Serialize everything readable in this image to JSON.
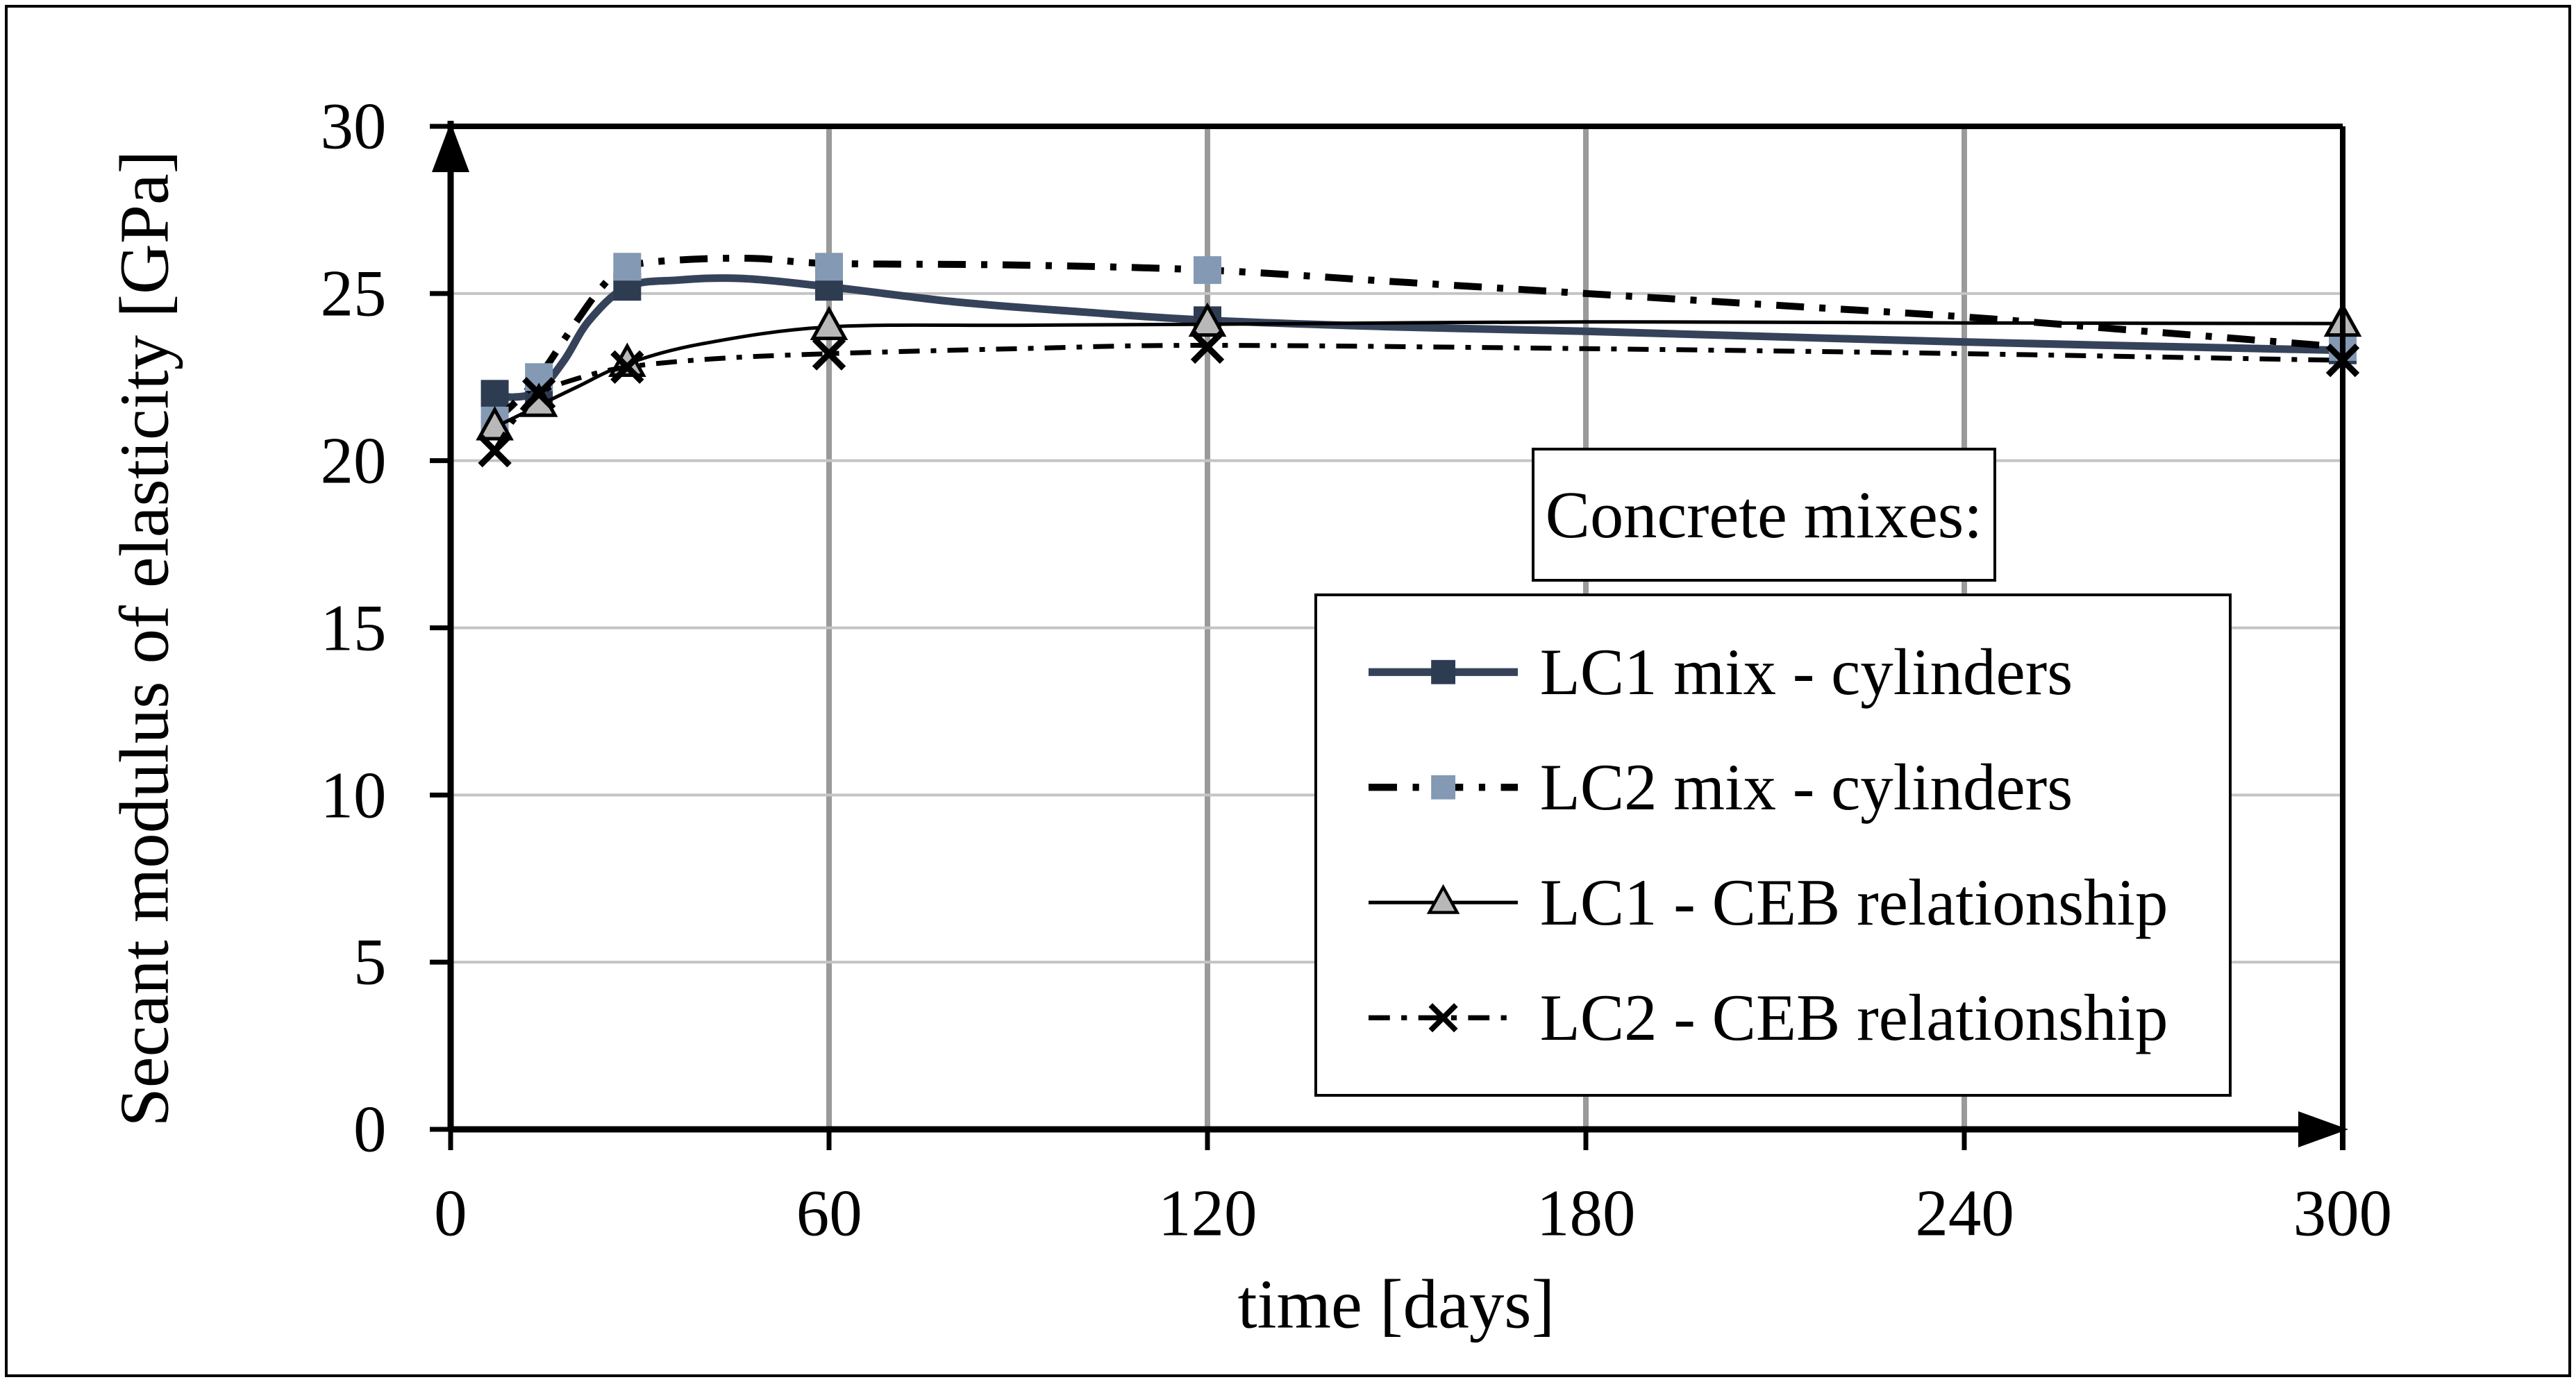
{
  "figure": {
    "background": "#ffffff",
    "frame_color": "#000000",
    "text_color": "#000000"
  },
  "chart_data": {
    "type": "line",
    "title": "",
    "xlabel": "time [days]",
    "ylabel": "Secant modulus of elasticity [GPa]",
    "xlim": [
      0,
      300
    ],
    "ylim": [
      0,
      30
    ],
    "x_ticks": [
      0,
      60,
      120,
      180,
      240,
      300
    ],
    "x_tick_labels": [
      "0",
      "60",
      "120",
      "180",
      "240",
      "300"
    ],
    "y_ticks": [
      0,
      5,
      10,
      15,
      20,
      25,
      30
    ],
    "y_tick_labels_top_down": [
      "30",
      "25",
      "20",
      "15",
      "10",
      "5",
      "0"
    ],
    "grid": {
      "show": true,
      "v_color": "#9a9a9a",
      "h_color": "#c4c4c4",
      "width": 4
    },
    "axis_color": "#000000",
    "axis_arrows": true,
    "legend": {
      "title": "Concrete mixes:",
      "position": "inside-right, boxed"
    },
    "series": [
      {
        "name": "LC1 mix - cylinders",
        "line_style": "solid",
        "line_width": 11,
        "color": "#35435a",
        "marker": "square",
        "marker_color": "#2e3c52",
        "marker_size": 40,
        "x": [
          7,
          14,
          28,
          60,
          120,
          300
        ],
        "values": [
          22.0,
          22.1,
          25.2,
          25.2,
          24.2,
          23.3
        ],
        "curve": [
          [
            7,
            22.0
          ],
          [
            10,
            21.9
          ],
          [
            14,
            22.1
          ],
          [
            18,
            23.0
          ],
          [
            22,
            24.2
          ],
          [
            28,
            25.2
          ],
          [
            36,
            25.4
          ],
          [
            46,
            25.45
          ],
          [
            60,
            25.2
          ],
          [
            80,
            24.75
          ],
          [
            100,
            24.45
          ],
          [
            120,
            24.2
          ],
          [
            150,
            24.0
          ],
          [
            180,
            23.87
          ],
          [
            240,
            23.55
          ],
          [
            300,
            23.3
          ]
        ]
      },
      {
        "name": "LC2 mix - cylinders",
        "line_style": "dash-dot",
        "line_width": 10,
        "color": "#000000",
        "dash": [
          40,
          22,
          9,
          22
        ],
        "marker": "square",
        "marker_color": "#8399b4",
        "marker_size": 40,
        "x": [
          7,
          14,
          28,
          60,
          120,
          300
        ],
        "values": [
          21.2,
          22.5,
          25.8,
          25.8,
          25.7,
          23.4
        ],
        "curve": [
          [
            7,
            21.2
          ],
          [
            10,
            21.7
          ],
          [
            14,
            22.5
          ],
          [
            19,
            23.9
          ],
          [
            24,
            25.2
          ],
          [
            28,
            25.8
          ],
          [
            36,
            26.0
          ],
          [
            48,
            26.05
          ],
          [
            60,
            25.9
          ],
          [
            90,
            25.85
          ],
          [
            120,
            25.7
          ],
          [
            150,
            25.35
          ],
          [
            180,
            25.0
          ],
          [
            210,
            24.65
          ],
          [
            240,
            24.3
          ],
          [
            270,
            23.85
          ],
          [
            300,
            23.4
          ]
        ]
      },
      {
        "name": "LC1 - CEB relationship",
        "line_style": "solid",
        "line_width": 5,
        "color": "#000000",
        "marker": "triangle",
        "marker_fill": "#b8b8b8",
        "marker_edge": "#000000",
        "marker_size": 44,
        "x": [
          7,
          14,
          28,
          60,
          120,
          300
        ],
        "values": [
          21.0,
          21.7,
          22.9,
          24.0,
          24.1,
          24.1
        ],
        "curve": [
          [
            7,
            21.0
          ],
          [
            14,
            21.65
          ],
          [
            20,
            22.2
          ],
          [
            28,
            22.9
          ],
          [
            40,
            23.5
          ],
          [
            60,
            24.0
          ],
          [
            90,
            24.05
          ],
          [
            120,
            24.08
          ],
          [
            180,
            24.15
          ],
          [
            240,
            24.12
          ],
          [
            300,
            24.1
          ]
        ]
      },
      {
        "name": "LC2 - CEB relationship",
        "line_style": "dash-dot-fine",
        "line_width": 7,
        "color": "#000000",
        "dash": [
          30,
          16,
          8,
          16
        ],
        "marker": "x",
        "marker_color": "#000000",
        "marker_size": 42,
        "x": [
          7,
          14,
          28,
          60,
          120,
          300
        ],
        "values": [
          20.3,
          22.0,
          22.8,
          23.2,
          23.4,
          23.0
        ],
        "curve": [
          [
            7,
            20.3
          ],
          [
            10,
            21.2
          ],
          [
            14,
            22.0
          ],
          [
            20,
            22.45
          ],
          [
            28,
            22.8
          ],
          [
            42,
            23.05
          ],
          [
            60,
            23.2
          ],
          [
            90,
            23.35
          ],
          [
            120,
            23.45
          ],
          [
            180,
            23.35
          ],
          [
            240,
            23.2
          ],
          [
            300,
            23.0
          ]
        ]
      }
    ]
  }
}
